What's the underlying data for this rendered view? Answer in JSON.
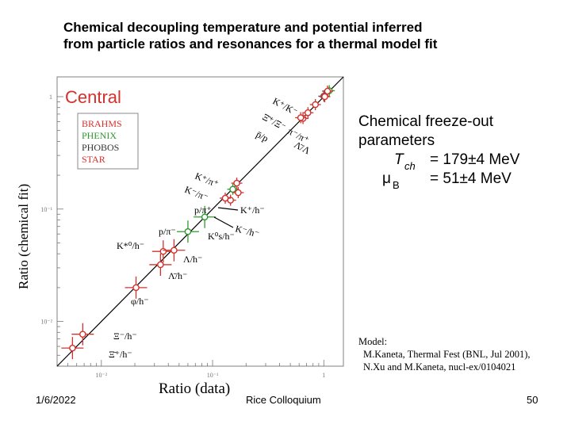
{
  "slide": {
    "title_line1": "Chemical decoupling temperature and potential inferred",
    "title_line2": "from particle ratios and resonances for a thermal model fit",
    "date": "1/6/2022",
    "venue": "Rice Colloquium",
    "page_number": "50"
  },
  "side_panel": {
    "heading_line1": "Chemical freeze-out",
    "heading_line2": "parameters",
    "T_symbol": "T",
    "T_sub": "ch",
    "T_value": "= 179±4 MeV",
    "mu_symbol": "μ",
    "mu_sub": "B",
    "mu_value": "= 51±4 MeV"
  },
  "model_note": {
    "line1": "Model:",
    "line2": "M.Kaneta, Thermal Fest (BNL, Jul 2001),",
    "line3": "N.Xu and M.Kaneta, nucl-ex/0104021"
  },
  "colors": {
    "BRAHMS": "#d4302c",
    "PHENIX": "#2f9a2f",
    "PHOBOS": "#555555",
    "STAR": "#d4302c",
    "frame": "#808080",
    "diagonal": "#000000"
  },
  "chart_data": {
    "type": "scatter",
    "panel_label": "Central",
    "xlabel": "Ratio (data)",
    "ylabel": "Ratio (chemical fit)",
    "x_scale": "log",
    "y_scale": "log",
    "xlim": [
      0.004,
      1.5
    ],
    "ylim": [
      0.004,
      1.5
    ],
    "x_ticks": [
      0.01,
      0.1,
      1
    ],
    "x_tick_labels": [
      "10⁻²",
      "10⁻¹",
      "1"
    ],
    "y_ticks": [
      0.01,
      0.1,
      1
    ],
    "y_tick_labels": [
      "10⁻²",
      "10⁻¹",
      "1"
    ],
    "reference_line": "y = x",
    "legend": {
      "placement": "top-left",
      "entries": [
        "BRAHMS",
        "PHENIX",
        "PHOBOS",
        "STAR"
      ]
    },
    "points": [
      {
        "label": "K⁺/K⁻",
        "x": 1.12,
        "y": 1.13,
        "experiment": "PHENIX"
      },
      {
        "label": "K⁺/K⁻",
        "x": 1.08,
        "y": 1.12,
        "experiment": "STAR"
      },
      {
        "label": "Ξ̄⁺/Ξ⁻",
        "x": 0.84,
        "y": 0.85,
        "experiment": "STAR"
      },
      {
        "label": "π⁻/π⁺",
        "x": 1.0,
        "y": 1.01,
        "experiment": "PHOBOS"
      },
      {
        "label": "π⁻/π⁺",
        "x": 1.02,
        "y": 1.0,
        "experiment": "STAR"
      },
      {
        "label": "p̄/p",
        "x": 0.65,
        "y": 0.64,
        "experiment": "BRAHMS"
      },
      {
        "label": "p̄/p",
        "x": 0.62,
        "y": 0.65,
        "experiment": "STAR"
      },
      {
        "label": "Λ̄/Λ",
        "x": 0.72,
        "y": 0.72,
        "experiment": "STAR"
      },
      {
        "label": "K⁺/π⁺",
        "x": 0.165,
        "y": 0.17,
        "experiment": "STAR"
      },
      {
        "label": "K⁻/π⁻",
        "x": 0.152,
        "y": 0.15,
        "experiment": "PHENIX"
      },
      {
        "label": "p/π⁺",
        "x": 0.085,
        "y": 0.085,
        "experiment": "PHENIX"
      },
      {
        "label": "K⁺/h⁻",
        "x": 0.17,
        "y": 0.14,
        "experiment": "STAR"
      },
      {
        "label": "K⁻/h⁻",
        "x": 0.145,
        "y": 0.12,
        "experiment": "STAR"
      },
      {
        "label": "K⁰s/h⁻",
        "x": 0.13,
        "y": 0.125,
        "experiment": "STAR"
      },
      {
        "label": "p/π⁻",
        "x": 0.06,
        "y": 0.063,
        "experiment": "PHENIX"
      },
      {
        "label": "K*⁰/h⁻",
        "x": 0.036,
        "y": 0.042,
        "experiment": "STAR"
      },
      {
        "label": "Λ/h⁻",
        "x": 0.045,
        "y": 0.043,
        "experiment": "STAR"
      },
      {
        "label": "Λ̄/h⁻",
        "x": 0.034,
        "y": 0.032,
        "experiment": "STAR"
      },
      {
        "label": "φ/h⁻",
        "x": 0.0205,
        "y": 0.02,
        "experiment": "STAR"
      },
      {
        "label": "Ξ⁻/h⁻",
        "x": 0.0068,
        "y": 0.0077,
        "experiment": "STAR"
      },
      {
        "label": "Ξ̄⁺/h⁻",
        "x": 0.0055,
        "y": 0.0058,
        "experiment": "STAR"
      }
    ]
  }
}
